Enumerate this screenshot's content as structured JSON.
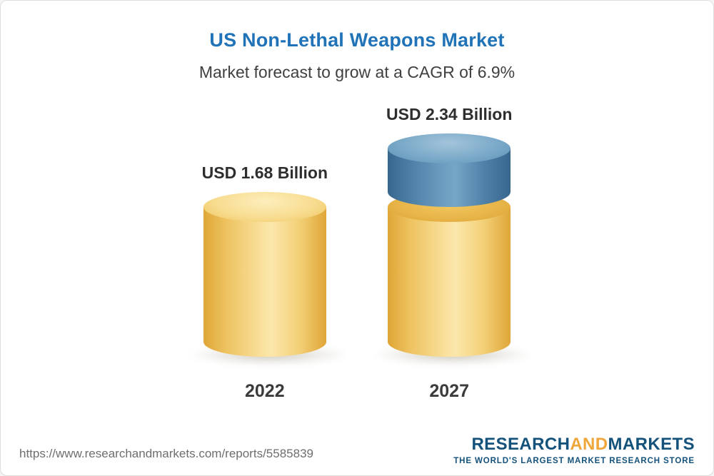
{
  "page": {
    "title": "US Non-Lethal Weapons Market",
    "subtitle": "Market forecast to grow at a CAGR of 6.9%"
  },
  "chart_data": {
    "type": "bar",
    "title": "US Non-Lethal Weapons Market",
    "subtitle": "Market forecast to grow at a CAGR of 6.9%",
    "categories": [
      "2022",
      "2027"
    ],
    "values": [
      1.68,
      2.34
    ],
    "value_labels": [
      "USD 1.68 Billion",
      "USD 2.34 Billion"
    ],
    "unit": "USD Billion",
    "cagr_percent": 6.9,
    "ylim": [
      0,
      2.34
    ],
    "grid": false,
    "legend_position": "none",
    "series": [
      {
        "name": "2022-base-value",
        "color": "#f2cd6d",
        "values": [
          1.68,
          1.68
        ]
      },
      {
        "name": "growth-to-2027",
        "color": "#5e93b9",
        "values": [
          0,
          0.66
        ]
      }
    ]
  },
  "footer": {
    "url": "https://www.researchandmarkets.com/reports/5585839",
    "logo": {
      "research": "RESEARCH",
      "and": "AND",
      "markets": "MARKETS",
      "tagline": "THE WORLD'S LARGEST MARKET RESEARCH STORE"
    }
  },
  "colors": {
    "title_blue": "#2173b8",
    "bar_yellow": "#f2cd6d",
    "bar_blue": "#5e93b9",
    "logo_blue": "#14527c",
    "logo_orange": "#efa63b"
  }
}
